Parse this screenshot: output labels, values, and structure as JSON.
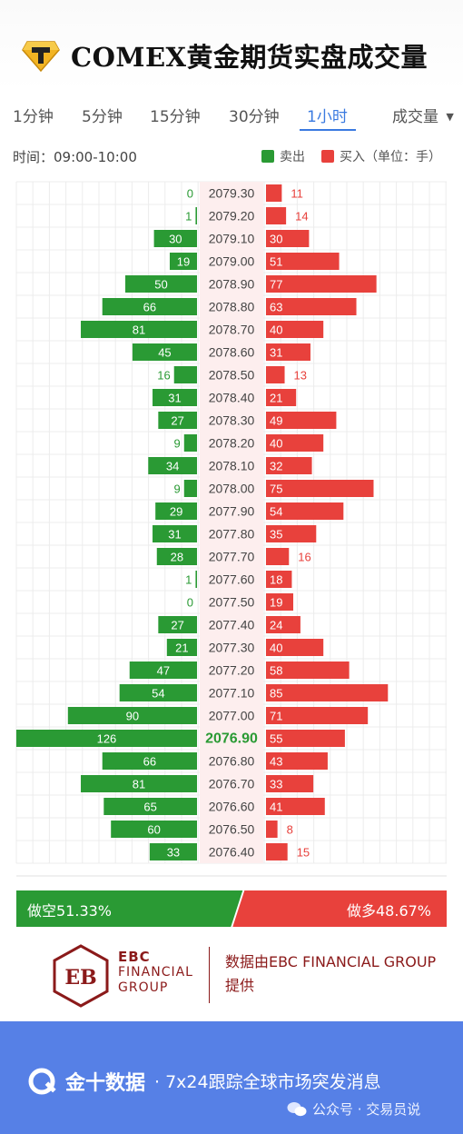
{
  "header": {
    "title": "COMEX黄金期货实盘成交量",
    "logo_icon": "diamond-t-logo-icon"
  },
  "tabs": {
    "items": [
      "1分钟",
      "5分钟",
      "15分钟",
      "30分钟",
      "1小时"
    ],
    "active": "1小时",
    "dropdown_label": "成交量",
    "dropdown_icon": "caret-down-icon"
  },
  "info": {
    "time": "时间：09:00-10:00",
    "legend_sell": "卖出",
    "legend_buy": "买入（单位：手）",
    "sell_color": "#2a9a34",
    "buy_color": "#e8413c"
  },
  "chart_data": {
    "type": "bar",
    "orientation": "horizontal-diverging",
    "y_label_unit": "price",
    "categories": [
      "2079.30",
      "2079.20",
      "2079.10",
      "2079.00",
      "2078.90",
      "2078.80",
      "2078.70",
      "2078.60",
      "2078.50",
      "2078.40",
      "2078.30",
      "2078.20",
      "2078.10",
      "2078.00",
      "2077.90",
      "2077.80",
      "2077.70",
      "2077.60",
      "2077.50",
      "2077.40",
      "2077.30",
      "2077.20",
      "2077.10",
      "2077.00",
      "2076.90",
      "2076.80",
      "2076.70",
      "2076.60",
      "2076.50",
      "2076.40"
    ],
    "series": [
      {
        "name": "卖出",
        "color": "#2a9a34",
        "values": [
          0,
          1,
          30,
          19,
          50,
          66,
          81,
          45,
          16,
          31,
          27,
          9,
          34,
          9,
          29,
          31,
          28,
          1,
          0,
          27,
          21,
          47,
          54,
          90,
          126,
          66,
          81,
          65,
          60,
          33
        ]
      },
      {
        "name": "买入",
        "color": "#e8413c",
        "values": [
          11,
          14,
          30,
          51,
          77,
          63,
          40,
          31,
          13,
          21,
          49,
          40,
          32,
          75,
          54,
          35,
          16,
          18,
          19,
          24,
          40,
          58,
          85,
          71,
          55,
          43,
          33,
          41,
          8,
          15
        ]
      }
    ],
    "highlight_price": "2076.90",
    "grid": true
  },
  "ratio": {
    "short_label": "做空51.33%",
    "long_label": "做多48.67%",
    "short_value": 51.33,
    "long_value": 48.67
  },
  "sponsor": {
    "logo_icon": "ebc-logo-icon",
    "name_line1": "EBC",
    "name_line2": "FINANCIAL",
    "name_line3": "GROUP",
    "credit": "数据由EBC FINANCIAL GROUP提供",
    "color": "#8b1a1a"
  },
  "footer": {
    "brand": "金十数据",
    "slogan": "· 7x24跟踪全球市场突发消息",
    "watermark": "公众号 · 交易员说",
    "bg_color": "#5680e6"
  }
}
